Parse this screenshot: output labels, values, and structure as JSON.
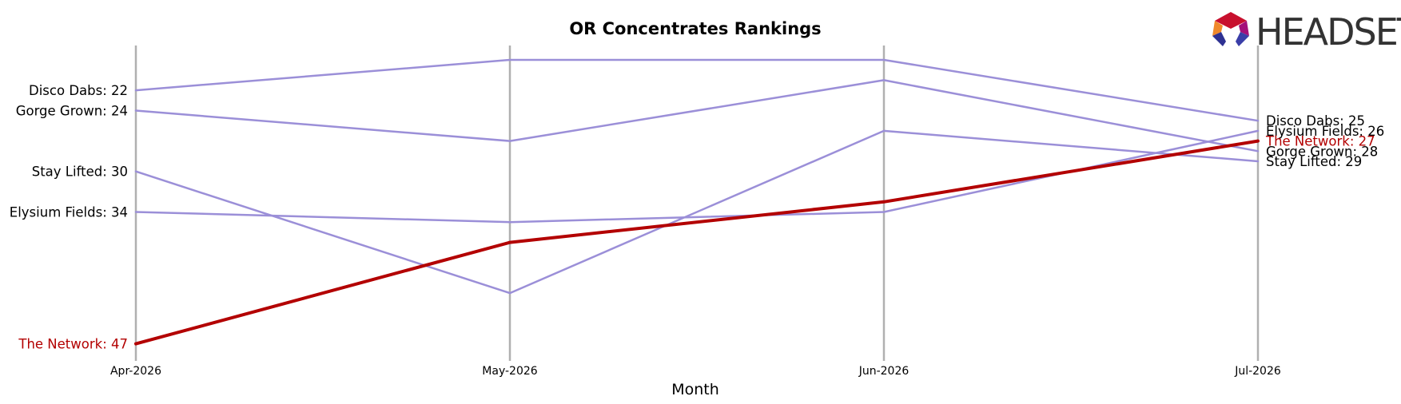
{
  "chart_data": {
    "type": "line",
    "title": "OR Concentrates Rankings",
    "xlabel": "Month",
    "ylabel": "",
    "categories": [
      "Apr-2026",
      "May-2026",
      "Jun-2026",
      "Jul-2026"
    ],
    "y_axis": "rank, inverted (1 at top)",
    "ylim": [
      47,
      19
    ],
    "grid": "vertical lines at each month",
    "series": [
      {
        "name": "Disco Dabs",
        "values": [
          22,
          19,
          19,
          25
        ],
        "color": "#9b8fd8",
        "highlight": false,
        "start_label": "Disco Dabs: 22",
        "end_label": "Disco Dabs: 25"
      },
      {
        "name": "Gorge Grown",
        "values": [
          24,
          27,
          21,
          28
        ],
        "color": "#9b8fd8",
        "highlight": false,
        "start_label": "Gorge Grown: 24",
        "end_label": "Gorge Grown: 28"
      },
      {
        "name": "Stay Lifted",
        "values": [
          30,
          42,
          26,
          29
        ],
        "color": "#9b8fd8",
        "highlight": false,
        "start_label": "Stay Lifted: 30",
        "end_label": "Stay Lifted: 29"
      },
      {
        "name": "Elysium Fields",
        "values": [
          34,
          35,
          34,
          26
        ],
        "color": "#9b8fd8",
        "highlight": false,
        "start_label": "Elysium Fields: 34",
        "end_label": "Elysium Fields: 26"
      },
      {
        "name": "The Network",
        "values": [
          47,
          37,
          33,
          27
        ],
        "color": "#b30000",
        "highlight": true,
        "start_label": "The Network: 47",
        "end_label": "The Network: 27"
      }
    ]
  },
  "logo": {
    "text": "HEADSET",
    "icon": "headset-hexagon-logo-icon"
  },
  "colors": {
    "grid": "#b0b0b0",
    "muted_series": "#9b8fd8",
    "highlight": "#b30000",
    "label": "#000000"
  }
}
